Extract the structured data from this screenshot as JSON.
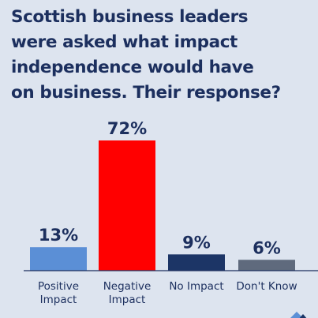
{
  "title_lines": [
    "Scottish business leaders",
    "were asked what impact",
    "independence would have",
    "on business. Their response?"
  ],
  "colors": {
    "background": "#dde4ef",
    "title": "#1c2f5e",
    "positive": "#5b8fd6",
    "negative": "#ff0000",
    "no_impact": "#1c3566",
    "dont_know": "#5f6a7d"
  },
  "chart_data": {
    "type": "bar",
    "title": "Scottish business leaders were asked what impact independence would have on business. Their response?",
    "categories": [
      [
        "Positive",
        "Impact"
      ],
      [
        "Negative",
        "Impact"
      ],
      [
        "No Impact"
      ],
      [
        "Don't Know"
      ]
    ],
    "values": [
      13,
      72,
      9,
      6
    ],
    "value_labels": [
      "13%",
      "72%",
      "9%",
      "6%"
    ],
    "bar_colors": [
      "#5b8fd6",
      "#ff0000",
      "#1c3566",
      "#5f6a7d"
    ],
    "ylim": [
      0,
      72
    ],
    "grid": false,
    "legend": "none"
  }
}
